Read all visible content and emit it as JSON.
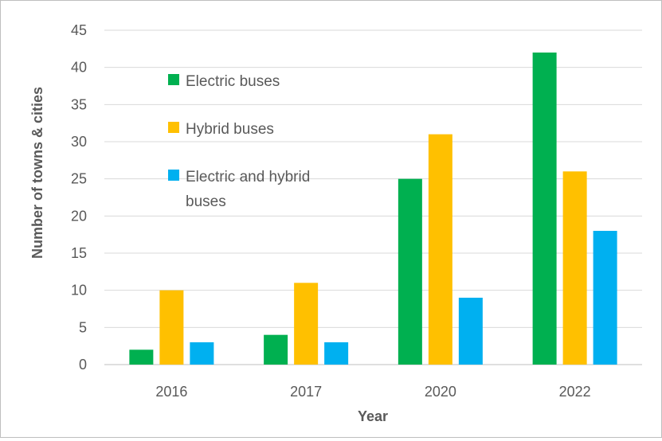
{
  "chart_data": {
    "type": "bar",
    "title": "",
    "xlabel": "Year",
    "ylabel": "Number of towns & cities",
    "categories": [
      "2016",
      "2017",
      "2020",
      "2022"
    ],
    "ylim": [
      0,
      45
    ],
    "yticks": [
      0,
      5,
      10,
      15,
      20,
      25,
      30,
      35,
      40,
      45
    ],
    "grid": true,
    "legend_position": "top-left",
    "series": [
      {
        "name": "Electric buses",
        "color": "#00b050",
        "values": [
          2,
          4,
          25,
          42
        ]
      },
      {
        "name": "Hybrid buses",
        "color": "#ffc000",
        "values": [
          10,
          11,
          31,
          26
        ]
      },
      {
        "name": "Electric and hybrid buses",
        "color": "#00b0f0",
        "values": [
          3,
          3,
          9,
          18
        ]
      }
    ],
    "legend_lines": [
      [
        "Electric buses"
      ],
      [
        "Hybrid buses"
      ],
      [
        "Electric and hybrid",
        "buses"
      ]
    ]
  }
}
